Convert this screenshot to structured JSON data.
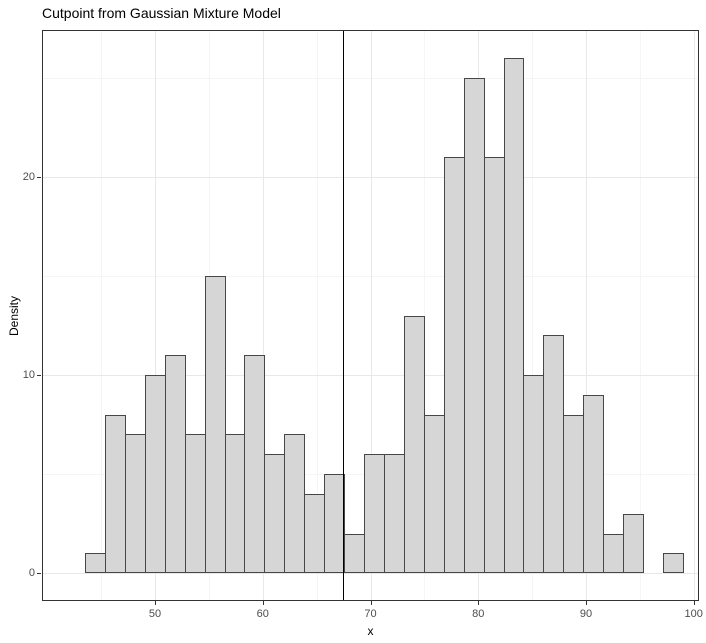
{
  "chart_data": {
    "type": "bar",
    "subtype": "histogram",
    "title": "Cutpoint from Gaussian Mixture Model",
    "xlabel": "x",
    "ylabel": "Density",
    "bin_start": 43.5,
    "bin_width": 1.85,
    "counts": [
      1,
      8,
      7,
      10,
      11,
      7,
      15,
      7,
      11,
      6,
      7,
      4,
      5,
      2,
      6,
      6,
      13,
      8,
      21,
      25,
      21,
      26,
      10,
      12,
      8,
      9,
      2,
      3,
      0,
      1
    ],
    "cutpoint_x": 67.5,
    "xlim": [
      39.6,
      100.4
    ],
    "ylim": [
      -1.35,
      27.35
    ],
    "x_ticks": [
      50,
      60,
      70,
      80,
      90,
      100
    ],
    "y_ticks": [
      0,
      10,
      20
    ],
    "x_minor_ticks": [
      45,
      55,
      65,
      75,
      85,
      95
    ],
    "y_minor_ticks": [
      5,
      15,
      25
    ],
    "grid": true,
    "legend": "none",
    "annotations": [
      {
        "kind": "vline",
        "x": 67.5,
        "color": "#000000",
        "description": "cutpoint between the two mixture components"
      }
    ]
  },
  "style": {
    "bar_fill": "#d6d6d6",
    "bar_stroke": "#474747",
    "grid_major": "#e8e8e8",
    "grid_minor": "#f5f5f5",
    "panel_border": "#333333",
    "vline_color": "#000000",
    "tick_color": "#333333",
    "tick_label_color": "#4d4d4d",
    "title_color": "#000000"
  }
}
